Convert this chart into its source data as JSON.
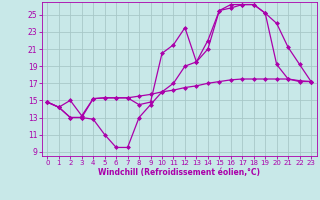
{
  "bg_color": "#c8e8e8",
  "grid_color": "#a8c8c8",
  "line_color": "#aa00aa",
  "marker": "D",
  "markersize": 2.0,
  "linewidth": 0.9,
  "xlabel": "Windchill (Refroidissement éolien,°C)",
  "xlim": [
    -0.5,
    23.5
  ],
  "ylim": [
    8.5,
    26.5
  ],
  "xticks": [
    0,
    1,
    2,
    3,
    4,
    5,
    6,
    7,
    8,
    9,
    10,
    11,
    12,
    13,
    14,
    15,
    16,
    17,
    18,
    19,
    20,
    21,
    22,
    23
  ],
  "yticks": [
    9,
    11,
    13,
    15,
    17,
    19,
    21,
    23,
    25
  ],
  "series1_x": [
    0,
    1,
    2,
    3,
    4,
    5,
    6,
    7,
    8,
    9,
    10,
    11,
    12,
    13,
    14,
    15,
    16,
    17,
    18,
    19,
    20,
    21,
    22,
    23
  ],
  "series1_y": [
    14.8,
    14.2,
    13.0,
    13.0,
    12.8,
    11.0,
    9.5,
    9.5,
    13.0,
    14.5,
    16.0,
    17.0,
    19.0,
    19.5,
    21.0,
    25.5,
    26.2,
    26.2,
    26.2,
    25.2,
    19.2,
    17.5,
    17.2,
    17.2
  ],
  "series2_x": [
    0,
    1,
    2,
    3,
    4,
    5,
    6,
    7,
    8,
    9,
    10,
    11,
    12,
    13,
    14,
    15,
    16,
    17,
    18,
    19,
    20,
    21,
    22,
    23
  ],
  "series2_y": [
    14.8,
    14.2,
    15.0,
    13.2,
    15.2,
    15.3,
    15.3,
    15.3,
    15.5,
    15.7,
    16.0,
    16.2,
    16.5,
    16.7,
    17.0,
    17.2,
    17.4,
    17.5,
    17.5,
    17.5,
    17.5,
    17.5,
    17.3,
    17.2
  ],
  "series3_x": [
    0,
    1,
    2,
    3,
    4,
    5,
    6,
    7,
    8,
    9,
    10,
    11,
    12,
    13,
    14,
    15,
    16,
    17,
    18,
    19,
    20,
    21,
    22,
    23
  ],
  "series3_y": [
    14.8,
    14.2,
    13.0,
    13.0,
    15.2,
    15.3,
    15.3,
    15.3,
    14.5,
    14.8,
    20.5,
    21.5,
    23.5,
    19.5,
    22.0,
    25.5,
    25.8,
    26.2,
    26.2,
    25.2,
    24.0,
    21.2,
    19.2,
    17.2
  ]
}
